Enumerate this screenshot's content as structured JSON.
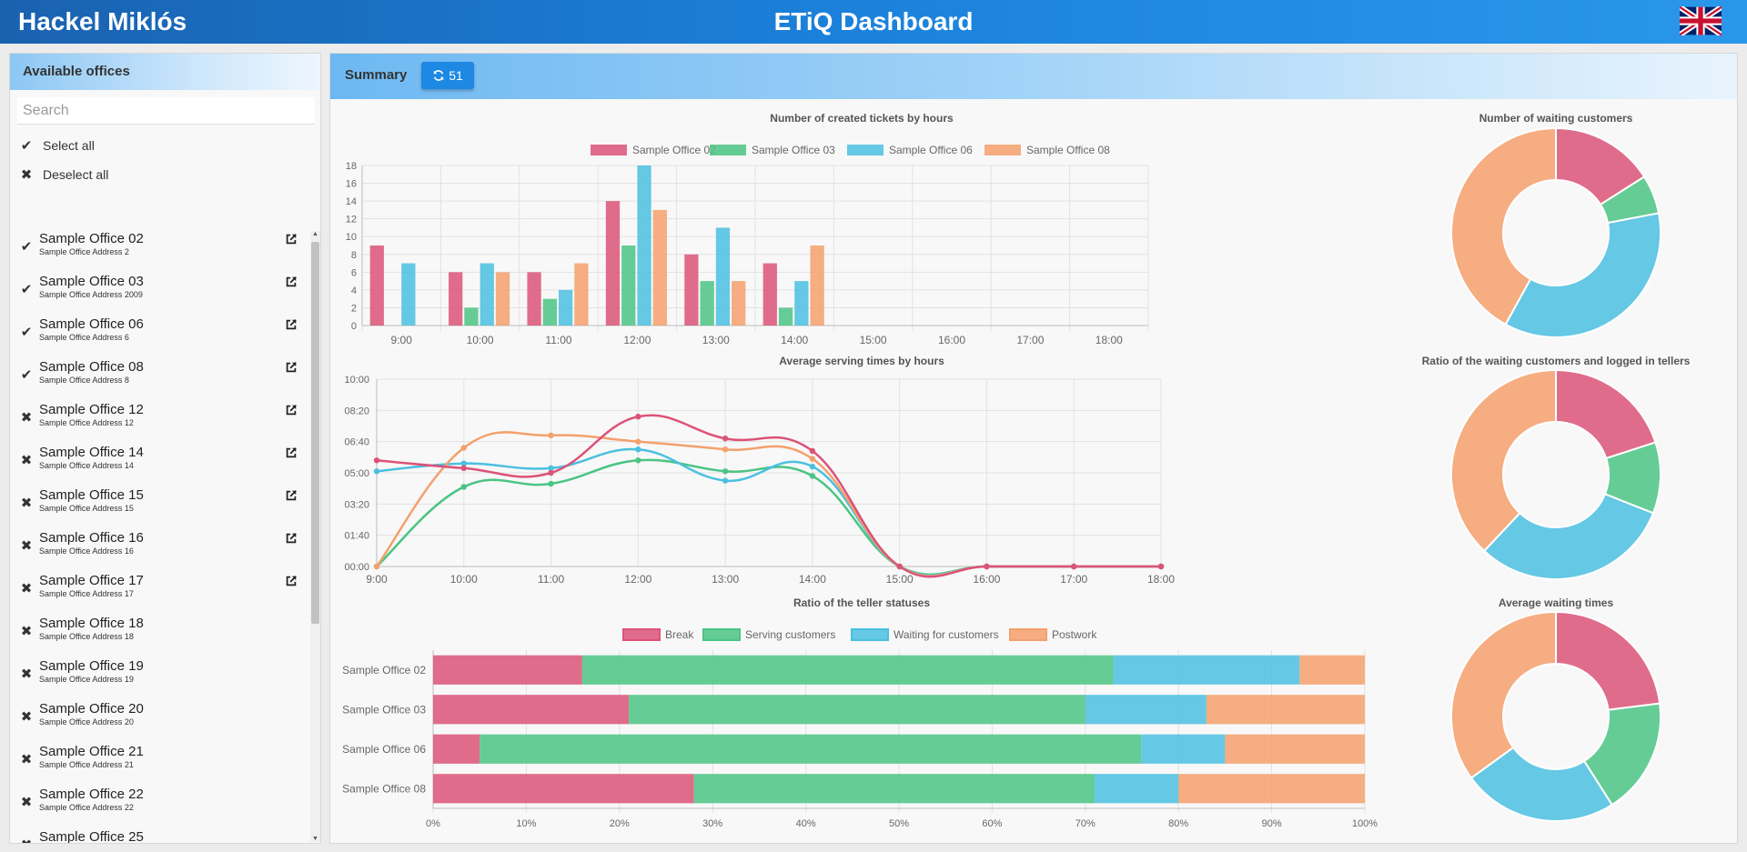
{
  "header": {
    "user_name": "Hackel Miklós",
    "title": "ETiQ Dashboard",
    "language_icon": "uk-flag-icon"
  },
  "sidebar": {
    "title": "Available offices",
    "search_placeholder": "Search",
    "select_all": "Select all",
    "deselect_all": "Deselect all",
    "offices": [
      {
        "name": "Sample Office 02",
        "address": "Sample Office Address 2",
        "selected": true,
        "link": true
      },
      {
        "name": "Sample Office 03",
        "address": "Sample Office Address 2009",
        "selected": true,
        "link": true
      },
      {
        "name": "Sample Office 06",
        "address": "Sample Office Address 6",
        "selected": true,
        "link": true
      },
      {
        "name": "Sample Office 08",
        "address": "Sample Office Address 8",
        "selected": true,
        "link": true
      },
      {
        "name": "Sample Office 12",
        "address": "Sample Office Address 12",
        "selected": false,
        "link": true
      },
      {
        "name": "Sample Office 14",
        "address": "Sample Office Address 14",
        "selected": false,
        "link": true
      },
      {
        "name": "Sample Office 15",
        "address": "Sample Office Address 15",
        "selected": false,
        "link": true
      },
      {
        "name": "Sample Office 16",
        "address": "Sample Office Address 16",
        "selected": false,
        "link": true
      },
      {
        "name": "Sample Office 17",
        "address": "Sample Office Address 17",
        "selected": false,
        "link": true
      },
      {
        "name": "Sample Office 18",
        "address": "Sample Office Address 18",
        "selected": false,
        "link": false
      },
      {
        "name": "Sample Office 19",
        "address": "Sample Office Address 19",
        "selected": false,
        "link": false
      },
      {
        "name": "Sample Office 20",
        "address": "Sample Office Address 20",
        "selected": false,
        "link": false
      },
      {
        "name": "Sample Office 21",
        "address": "Sample Office Address 21",
        "selected": false,
        "link": false
      },
      {
        "name": "Sample Office 22",
        "address": "Sample Office Address 22",
        "selected": false,
        "link": false
      },
      {
        "name": "Sample Office 25",
        "address": "",
        "selected": false,
        "link": false
      }
    ]
  },
  "main": {
    "title": "Summary",
    "refresh_count": "51"
  },
  "colors": {
    "office_02": "#dc5378",
    "office_03": "#4bc484",
    "office_06": "#4bc0e0",
    "office_08": "#f4a06c",
    "accent": "#1e88e5"
  },
  "chart_data": [
    {
      "type": "bar",
      "title": "Number of created tickets by hours",
      "categories": [
        "9:00",
        "10:00",
        "11:00",
        "12:00",
        "13:00",
        "14:00",
        "15:00",
        "16:00",
        "17:00",
        "18:00"
      ],
      "ylim": [
        0,
        18
      ],
      "yticks": [
        "0",
        "2",
        "4",
        "6",
        "8",
        "10",
        "12",
        "14",
        "16",
        "18"
      ],
      "legend_position": "top",
      "series": [
        {
          "name": "Sample Office 02",
          "values": [
            9,
            6,
            6,
            14,
            8,
            7,
            0,
            0,
            0,
            0
          ]
        },
        {
          "name": "Sample Office 03",
          "values": [
            0,
            2,
            3,
            9,
            5,
            2,
            0,
            0,
            0,
            0
          ]
        },
        {
          "name": "Sample Office 06",
          "values": [
            7,
            7,
            4,
            18,
            11,
            5,
            0,
            0,
            0,
            0
          ]
        },
        {
          "name": "Sample Office 08",
          "values": [
            0,
            6,
            7,
            13,
            5,
            9,
            0,
            0,
            0,
            0
          ]
        }
      ]
    },
    {
      "type": "line",
      "title": "Average serving times by hours",
      "categories": [
        "9:00",
        "10:00",
        "11:00",
        "12:00",
        "13:00",
        "14:00",
        "15:00",
        "16:00",
        "17:00",
        "18:00"
      ],
      "yticks": [
        "00:00",
        "01:40",
        "03:20",
        "05:00",
        "06:40",
        "08:20",
        "10:00"
      ],
      "ylim_seconds": [
        0,
        600
      ],
      "series": [
        {
          "name": "Sample Office 02",
          "values_seconds": [
            340,
            315,
            300,
            480,
            410,
            370,
            0,
            0,
            0,
            0
          ]
        },
        {
          "name": "Sample Office 03",
          "values_seconds": [
            0,
            255,
            265,
            340,
            305,
            290,
            0,
            0,
            0,
            0
          ]
        },
        {
          "name": "Sample Office 06",
          "values_seconds": [
            305,
            330,
            315,
            375,
            275,
            320,
            0,
            0,
            0,
            0
          ]
        },
        {
          "name": "Sample Office 08",
          "values_seconds": [
            0,
            380,
            420,
            400,
            375,
            345,
            0,
            0,
            0,
            0
          ]
        }
      ]
    },
    {
      "type": "bar",
      "orientation": "horizontal-stacked",
      "title": "Ratio of the teller statuses",
      "categories": [
        "Sample Office 02",
        "Sample Office 03",
        "Sample Office 06",
        "Sample Office 08"
      ],
      "xticks": [
        "0%",
        "10%",
        "20%",
        "30%",
        "40%",
        "50%",
        "60%",
        "70%",
        "80%",
        "90%",
        "100%"
      ],
      "xlim": [
        0,
        100
      ],
      "legend_position": "top",
      "series": [
        {
          "name": "Break",
          "color": "#dc5378",
          "values": [
            16,
            21,
            5,
            28
          ]
        },
        {
          "name": "Serving customers",
          "color": "#4bc484",
          "values": [
            57,
            49,
            71,
            43
          ]
        },
        {
          "name": "Waiting for customers",
          "color": "#4bc0e0",
          "values": [
            20,
            13,
            9,
            9
          ]
        },
        {
          "name": "Postwork",
          "color": "#f4a06c",
          "values": [
            7,
            17,
            15,
            20
          ]
        }
      ]
    },
    {
      "type": "pie",
      "title": "Number of waiting customers",
      "labels": [
        "Sample Office 02",
        "Sample Office 03",
        "Sample Office 06",
        "Sample Office 08"
      ],
      "values": [
        16,
        6,
        36,
        42
      ]
    },
    {
      "type": "pie",
      "title": "Ratio of the waiting customers and logged in tellers",
      "labels": [
        "Sample Office 02",
        "Sample Office 03",
        "Sample Office 06",
        "Sample Office 08"
      ],
      "values": [
        20,
        11,
        31,
        38
      ]
    },
    {
      "type": "pie",
      "title": "Average waiting times",
      "labels": [
        "Sample Office 02",
        "Sample Office 03",
        "Sample Office 06",
        "Sample Office 08"
      ],
      "values": [
        23,
        18,
        24,
        35
      ]
    }
  ]
}
